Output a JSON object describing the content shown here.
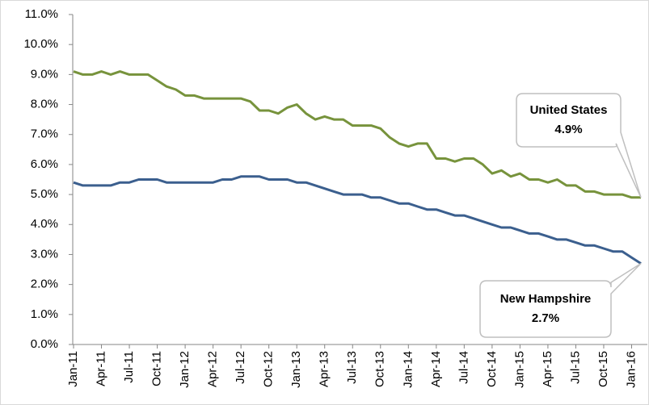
{
  "chart_data": {
    "type": "line",
    "categories": [
      "Jan-11",
      null,
      null,
      "Apr-11",
      null,
      null,
      "Jul-11",
      null,
      null,
      "Oct-11",
      null,
      null,
      "Jan-12",
      null,
      null,
      "Apr-12",
      null,
      null,
      "Jul-12",
      null,
      null,
      "Oct-12",
      null,
      null,
      "Jan-13",
      null,
      null,
      "Apr-13",
      null,
      null,
      "Jul-13",
      null,
      null,
      "Oct-13",
      null,
      null,
      "Jan-14",
      null,
      null,
      "Apr-14",
      null,
      null,
      "Jul-14",
      null,
      null,
      "Oct-14",
      null,
      null,
      "Jan-15",
      null,
      null,
      "Apr-15",
      null,
      null,
      "Jul-15",
      null,
      null,
      "Oct-15",
      null,
      null,
      "Jan-16",
      null
    ],
    "series": [
      {
        "name": "United States",
        "color": "#77933c",
        "end_label": "4.9%",
        "values": [
          9.1,
          9.0,
          9.0,
          9.1,
          9.0,
          9.1,
          9.0,
          9.0,
          9.0,
          8.8,
          8.6,
          8.5,
          8.3,
          8.3,
          8.2,
          8.2,
          8.2,
          8.2,
          8.2,
          8.1,
          7.8,
          7.8,
          7.7,
          7.9,
          8.0,
          7.7,
          7.5,
          7.6,
          7.5,
          7.5,
          7.3,
          7.3,
          7.3,
          7.2,
          6.9,
          6.7,
          6.6,
          6.7,
          6.7,
          6.2,
          6.2,
          6.1,
          6.2,
          6.2,
          6.0,
          5.7,
          5.8,
          5.6,
          5.7,
          5.5,
          5.5,
          5.4,
          5.5,
          5.3,
          5.3,
          5.1,
          5.1,
          5.0,
          5.0,
          5.0,
          4.9,
          4.9
        ]
      },
      {
        "name": "New Hampshire",
        "color": "#3b5f8e",
        "end_label": "2.7%",
        "values": [
          5.4,
          5.3,
          5.3,
          5.3,
          5.3,
          5.4,
          5.4,
          5.5,
          5.5,
          5.5,
          5.4,
          5.4,
          5.4,
          5.4,
          5.4,
          5.4,
          5.5,
          5.5,
          5.6,
          5.6,
          5.6,
          5.5,
          5.5,
          5.5,
          5.4,
          5.4,
          5.3,
          5.2,
          5.1,
          5.0,
          5.0,
          5.0,
          4.9,
          4.9,
          4.8,
          4.7,
          4.7,
          4.6,
          4.5,
          4.5,
          4.4,
          4.3,
          4.3,
          4.2,
          4.1,
          4.0,
          3.9,
          3.9,
          3.8,
          3.7,
          3.7,
          3.6,
          3.5,
          3.5,
          3.4,
          3.3,
          3.3,
          3.2,
          3.1,
          3.1,
          2.9,
          2.7
        ]
      }
    ],
    "ylim": [
      0,
      11
    ],
    "yticks": [
      {
        "value": 0,
        "label": "0.0%"
      },
      {
        "value": 1,
        "label": "1.0%"
      },
      {
        "value": 2,
        "label": "2.0%"
      },
      {
        "value": 3,
        "label": "3.0%"
      },
      {
        "value": 4,
        "label": "4.0%"
      },
      {
        "value": 5,
        "label": "5.0%"
      },
      {
        "value": 6,
        "label": "6.0%"
      },
      {
        "value": 7,
        "label": "7.0%"
      },
      {
        "value": 8,
        "label": "8.0%"
      },
      {
        "value": 9,
        "label": "9.0%"
      },
      {
        "value": 10,
        "label": "10.0%"
      },
      {
        "value": 11,
        "label": "11.0%"
      }
    ],
    "grid": false
  }
}
